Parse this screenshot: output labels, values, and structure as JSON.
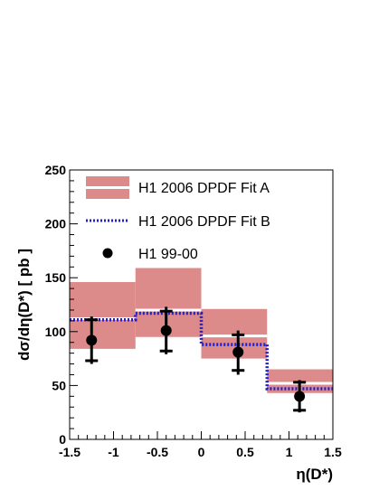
{
  "chart_data": {
    "type": "histogram",
    "xlabel": "η(D*)",
    "ylabel": "dσ/dη(D*) [ pb ]",
    "xlim": [
      -1.5,
      1.5
    ],
    "ylim": [
      0,
      250
    ],
    "x_ticks": [
      "-1.5",
      "-1",
      "-0.5",
      "0",
      "0.5",
      "1",
      "1.5"
    ],
    "y_ticks": [
      "0",
      "50",
      "100",
      "150",
      "200",
      "250"
    ],
    "legend_position": "top-left",
    "series": [
      {
        "name": "H1 2006 DPDF Fit A",
        "style": "band",
        "color": "#dc8a8a",
        "central_color": "#ffffff",
        "bins": [
          {
            "x_low": -1.5,
            "x_high": -0.75,
            "value": 112,
            "band_low": 84,
            "band_high": 146
          },
          {
            "x_low": -0.75,
            "x_high": 0.0,
            "value": 120,
            "band_low": 95,
            "band_high": 159
          },
          {
            "x_low": 0.0,
            "x_high": 0.75,
            "value": 96,
            "band_low": 75,
            "band_high": 121
          },
          {
            "x_low": 0.75,
            "x_high": 1.5,
            "value": 52,
            "band_low": 43,
            "band_high": 65
          }
        ]
      },
      {
        "name": "H1 2006 DPDF Fit B",
        "style": "dotted-step",
        "color": "#1f1fd0",
        "bins": [
          {
            "x_low": -1.5,
            "x_high": -0.75,
            "value": 111
          },
          {
            "x_low": -0.75,
            "x_high": 0.0,
            "value": 117
          },
          {
            "x_low": 0.0,
            "x_high": 0.75,
            "value": 88
          },
          {
            "x_low": 0.75,
            "x_high": 1.5,
            "value": 47
          }
        ]
      },
      {
        "name": "H1 99-00",
        "style": "points",
        "color": "#000000",
        "points": [
          {
            "x": -1.25,
            "y": 92,
            "err_low": 22,
            "err_high": 22,
            "inner_low": 19,
            "inner_high": 19
          },
          {
            "x": -0.4,
            "y": 101,
            "err_low": 22,
            "err_high": 22,
            "inner_low": 19,
            "inner_high": 18
          },
          {
            "x": 0.42,
            "y": 81,
            "err_low": 21,
            "err_high": 20,
            "inner_low": 17,
            "inner_high": 16
          },
          {
            "x": 1.12,
            "y": 40,
            "err_low": 15,
            "err_high": 15,
            "inner_low": 13,
            "inner_high": 13
          }
        ]
      }
    ]
  }
}
